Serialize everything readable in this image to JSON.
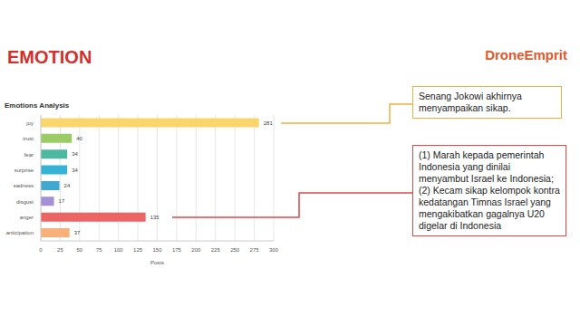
{
  "heading": "EMOTION",
  "logo": "DroneEmprit",
  "chart_data": {
    "type": "bar",
    "title": "Emotions Analysis",
    "orientation": "horizontal",
    "categories": [
      "joy",
      "trust",
      "fear",
      "surprise",
      "sadness",
      "disgust",
      "anger",
      "anticipation"
    ],
    "values": [
      281,
      40,
      34,
      34,
      24,
      17,
      135,
      37
    ],
    "colors": [
      "#f9d66b",
      "#9ccc65",
      "#4cb8a0",
      "#35b3d6",
      "#41a8cf",
      "#a58fd6",
      "#ec6464",
      "#f7b07a"
    ],
    "xlim": [
      0,
      300
    ],
    "xticks": [
      0,
      25,
      50,
      75,
      100,
      125,
      150,
      175,
      200,
      225,
      250,
      275,
      300
    ],
    "x_label": "Posts",
    "grid": true,
    "data_labels": true,
    "annotations": [
      [
        "Senang Jokowi akhirnya menyampaikan sikap."
      ],
      [
        "(1) Marah kepada pemerintah Indonesia yang dinilai menyambut Israel ke Indonesia;",
        "(2) Kecam sikap kelompok kontra kedatangan Timnas Israel yang mengakibatkan gagalnya U20 digelar di Indonesia"
      ]
    ]
  }
}
